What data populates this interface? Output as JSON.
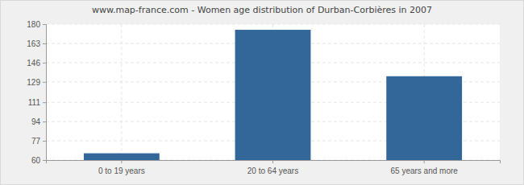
{
  "chart_data": {
    "type": "bar",
    "title": "www.map-france.com - Women age distribution of Durban-Corbières in 2007",
    "categories": [
      "0 to 19 years",
      "20 to 64 years",
      "65 years and more"
    ],
    "values": [
      66,
      175,
      134
    ],
    "color": "#336699",
    "ylim": [
      60,
      180
    ],
    "yticks": [
      60,
      77,
      94,
      111,
      129,
      146,
      163,
      180
    ],
    "grid": true
  }
}
